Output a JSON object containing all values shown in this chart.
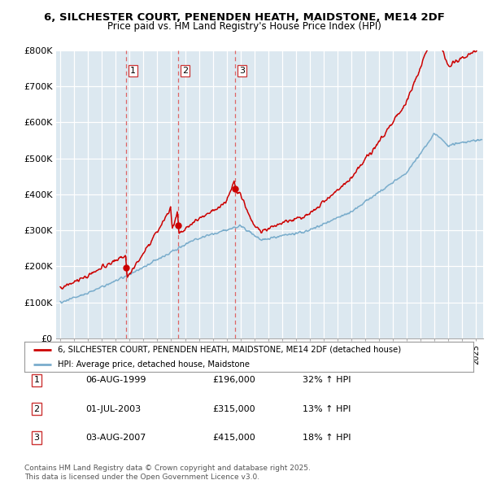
{
  "title": "6, SILCHESTER COURT, PENENDEN HEATH, MAIDSTONE, ME14 2DF",
  "subtitle": "Price paid vs. HM Land Registry's House Price Index (HPI)",
  "legend_label_red": "6, SILCHESTER COURT, PENENDEN HEATH, MAIDSTONE, ME14 2DF (detached house)",
  "legend_label_blue": "HPI: Average price, detached house, Maidstone",
  "transactions": [
    {
      "num": 1,
      "date": "06-AUG-1999",
      "price": 196000,
      "hpi_change": "32% ↑ HPI",
      "x_year": 1999.75
    },
    {
      "num": 2,
      "date": "01-JUL-2003",
      "price": 315000,
      "hpi_change": "13% ↑ HPI",
      "x_year": 2003.5
    },
    {
      "num": 3,
      "date": "03-AUG-2007",
      "price": 415000,
      "hpi_change": "18% ↑ HPI",
      "x_year": 2007.6
    }
  ],
  "footer": "Contains HM Land Registry data © Crown copyright and database right 2025.\nThis data is licensed under the Open Government Licence v3.0.",
  "red_color": "#cc0000",
  "blue_color": "#7aadcc",
  "vline_color": "#dd6666",
  "chart_bg": "#dce8f0",
  "background_color": "#ffffff",
  "ylim": [
    0,
    800000
  ],
  "xlim_start": 1994.7,
  "xlim_end": 2025.5,
  "yticks": [
    0,
    100000,
    200000,
    300000,
    400000,
    500000,
    600000,
    700000,
    800000
  ],
  "ytick_labels": [
    "£0",
    "£100K",
    "£200K",
    "£300K",
    "£400K",
    "£500K",
    "£600K",
    "£700K",
    "£800K"
  ]
}
